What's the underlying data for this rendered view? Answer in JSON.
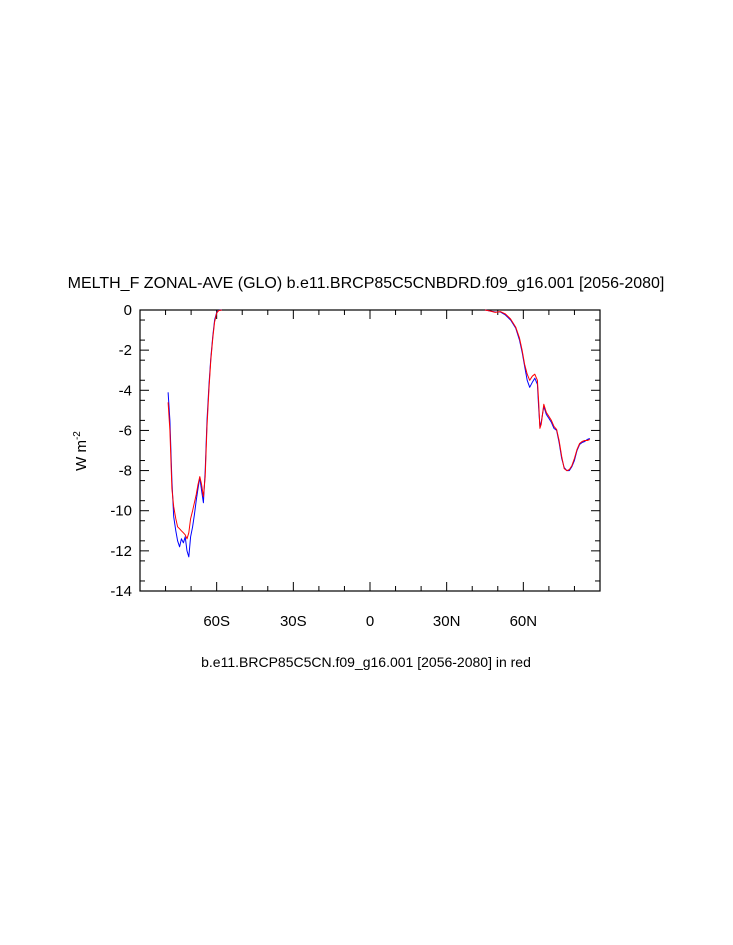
{
  "chart_data": {
    "type": "line",
    "title": "MELTH_F ZONAL-AVE (GLO) b.e11.BRCP85C5CNBDRD.f09_g16.001 [2056-2080]",
    "ylabel_base": "W m",
    "ylabel_sup": "-2",
    "xlabel": "b.e11.BRCP85C5CN.f09_g16.001 [2056-2080] in red",
    "xlim": [
      -90,
      90
    ],
    "ylim": [
      -14,
      0
    ],
    "x_ticks": [
      {
        "value": -60,
        "label": "60S"
      },
      {
        "value": -30,
        "label": "30S"
      },
      {
        "value": 0,
        "label": "0"
      },
      {
        "value": 30,
        "label": "30N"
      },
      {
        "value": 60,
        "label": "60N"
      }
    ],
    "y_ticks": [
      {
        "value": 0,
        "label": "0"
      },
      {
        "value": -2,
        "label": "-2"
      },
      {
        "value": -4,
        "label": "-4"
      },
      {
        "value": -6,
        "label": "-6"
      },
      {
        "value": -8,
        "label": "-8"
      },
      {
        "value": -10,
        "label": "-10"
      },
      {
        "value": -12,
        "label": "-12"
      },
      {
        "value": -14,
        "label": "-14"
      }
    ],
    "series": [
      {
        "color": "#0000ff",
        "segments": [
          [
            [
              -79,
              -4.1
            ],
            [
              -78.3,
              -5.5
            ],
            [
              -77.5,
              -8.5
            ],
            [
              -76.8,
              -10.3
            ],
            [
              -76,
              -11.0
            ],
            [
              -75.3,
              -11.5
            ],
            [
              -74.5,
              -11.8
            ],
            [
              -73.8,
              -11.4
            ],
            [
              -73,
              -11.6
            ],
            [
              -72.3,
              -11.3
            ],
            [
              -71.6,
              -12.0
            ],
            [
              -70.9,
              -12.3
            ],
            [
              -70.2,
              -11.3
            ],
            [
              -69.4,
              -10.8
            ],
            [
              -68.7,
              -10.2
            ],
            [
              -68,
              -9.5
            ],
            [
              -67.3,
              -8.9
            ],
            [
              -66.6,
              -8.35
            ],
            [
              -65.9,
              -9.0
            ],
            [
              -65.2,
              -9.6
            ],
            [
              -64.5,
              -8.0
            ],
            [
              -63.8,
              -5.5
            ],
            [
              -63,
              -3.7
            ],
            [
              -62.3,
              -2.4
            ],
            [
              -61.5,
              -1.3
            ],
            [
              -60.8,
              -0.5
            ],
            [
              -60,
              -0.12
            ],
            [
              -59.2,
              -0.02
            ],
            [
              -58,
              0
            ]
          ],
          [
            [
              45,
              0
            ],
            [
              47,
              -0.05
            ],
            [
              49,
              -0.1
            ],
            [
              51,
              -0.1
            ],
            [
              53,
              -0.25
            ],
            [
              55,
              -0.5
            ],
            [
              57,
              -0.9
            ],
            [
              58.5,
              -1.5
            ],
            [
              59.5,
              -2.1
            ],
            [
              60.5,
              -2.8
            ],
            [
              61.5,
              -3.5
            ],
            [
              62.5,
              -3.85
            ],
            [
              63.5,
              -3.6
            ],
            [
              64.5,
              -3.4
            ],
            [
              65.5,
              -3.7
            ],
            [
              66,
              -4.9
            ],
            [
              66.5,
              -5.8
            ],
            [
              67,
              -5.6
            ],
            [
              68,
              -4.8
            ],
            [
              69,
              -5.2
            ],
            [
              70,
              -5.4
            ],
            [
              71,
              -5.6
            ],
            [
              72,
              -5.9
            ],
            [
              73,
              -6.0
            ],
            [
              74,
              -6.6
            ],
            [
              75,
              -7.4
            ],
            [
              76,
              -7.85
            ],
            [
              77,
              -8.0
            ],
            [
              78,
              -8.0
            ],
            [
              79,
              -7.8
            ],
            [
              80,
              -7.5
            ],
            [
              81,
              -7.0
            ],
            [
              82,
              -6.7
            ],
            [
              83,
              -6.6
            ],
            [
              84,
              -6.55
            ],
            [
              85,
              -6.45
            ],
            [
              86,
              -6.4
            ]
          ]
        ]
      },
      {
        "color": "#ff0000",
        "segments": [
          [
            [
              -79,
              -4.6
            ],
            [
              -78.3,
              -6.0
            ],
            [
              -77.5,
              -8.9
            ],
            [
              -76.8,
              -9.8
            ],
            [
              -76,
              -10.4
            ],
            [
              -75.3,
              -10.8
            ],
            [
              -74.5,
              -10.9
            ],
            [
              -73.8,
              -11.0
            ],
            [
              -73,
              -11.1
            ],
            [
              -72.3,
              -11.2
            ],
            [
              -71.6,
              -11.4
            ],
            [
              -70.9,
              -11.1
            ],
            [
              -70.2,
              -10.4
            ],
            [
              -69.4,
              -10.0
            ],
            [
              -68.7,
              -9.6
            ],
            [
              -68,
              -9.2
            ],
            [
              -67.3,
              -8.7
            ],
            [
              -66.6,
              -8.3
            ],
            [
              -65.9,
              -8.7
            ],
            [
              -65.2,
              -9.3
            ],
            [
              -64.5,
              -8.3
            ],
            [
              -63.8,
              -5.8
            ],
            [
              -63,
              -3.9
            ],
            [
              -62.3,
              -2.5
            ],
            [
              -61.5,
              -1.4
            ],
            [
              -60.8,
              -0.6
            ],
            [
              -60,
              -0.15
            ],
            [
              -59.2,
              -0.03
            ],
            [
              -58,
              0
            ]
          ],
          [
            [
              45,
              0
            ],
            [
              47,
              -0.05
            ],
            [
              49,
              -0.12
            ],
            [
              51,
              -0.08
            ],
            [
              53,
              -0.2
            ],
            [
              55,
              -0.45
            ],
            [
              57,
              -0.85
            ],
            [
              58.5,
              -1.4
            ],
            [
              59.5,
              -2.0
            ],
            [
              60.5,
              -2.7
            ],
            [
              61.5,
              -3.2
            ],
            [
              62.5,
              -3.5
            ],
            [
              63.5,
              -3.3
            ],
            [
              64.5,
              -3.2
            ],
            [
              65.5,
              -3.5
            ],
            [
              66,
              -4.6
            ],
            [
              66.5,
              -5.9
            ],
            [
              67,
              -5.7
            ],
            [
              68,
              -4.7
            ],
            [
              69,
              -5.1
            ],
            [
              70,
              -5.3
            ],
            [
              71,
              -5.5
            ],
            [
              72,
              -5.8
            ],
            [
              73,
              -5.95
            ],
            [
              74,
              -6.5
            ],
            [
              75,
              -7.3
            ],
            [
              76,
              -7.9
            ],
            [
              77,
              -8.0
            ],
            [
              78,
              -7.95
            ],
            [
              79,
              -7.75
            ],
            [
              80,
              -7.4
            ],
            [
              81,
              -6.95
            ],
            [
              82,
              -6.65
            ],
            [
              83,
              -6.55
            ],
            [
              84,
              -6.5
            ],
            [
              85,
              -6.5
            ],
            [
              86,
              -6.45
            ]
          ]
        ]
      }
    ]
  }
}
